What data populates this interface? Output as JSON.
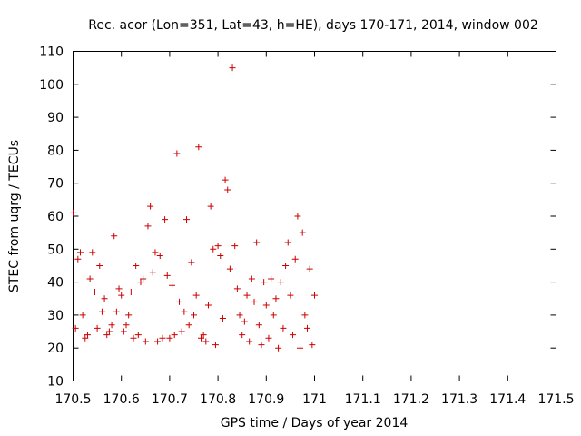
{
  "chart_data": {
    "type": "scatter",
    "title": "Rec. acor (Lon=351, Lat=43, h=HE), days 170-171, 2014, window 002",
    "xlabel": "GPS time / Days of year 2014",
    "ylabel": "STEC from uqrg / TECUs",
    "xlim": [
      170.5,
      171.5
    ],
    "ylim": [
      10,
      110
    ],
    "xticks": [
      170.5,
      170.6,
      170.7,
      170.8,
      170.9,
      171.0,
      171.1,
      171.2,
      171.3,
      171.4,
      171.5
    ],
    "xtick_labels": [
      "170.5",
      "170.6",
      "170.7",
      "170.8",
      "170.9",
      "171",
      "171.1",
      "171.2",
      "171.3",
      "171.4",
      "171.5"
    ],
    "yticks": [
      10,
      20,
      30,
      40,
      50,
      60,
      70,
      80,
      90,
      100,
      110
    ],
    "grid": false,
    "marker": "+",
    "color": "#cc0000",
    "series": [
      {
        "points": [
          [
            170.5,
            61
          ],
          [
            170.505,
            26
          ],
          [
            170.51,
            47
          ],
          [
            170.515,
            49
          ],
          [
            170.52,
            30
          ],
          [
            170.525,
            23
          ],
          [
            170.53,
            24
          ],
          [
            170.535,
            41
          ],
          [
            170.54,
            49
          ],
          [
            170.545,
            37
          ],
          [
            170.55,
            26
          ],
          [
            170.555,
            45
          ],
          [
            170.56,
            31
          ],
          [
            170.565,
            35
          ],
          [
            170.57,
            24
          ],
          [
            170.575,
            25
          ],
          [
            170.58,
            27
          ],
          [
            170.585,
            54
          ],
          [
            170.59,
            31
          ],
          [
            170.595,
            38
          ],
          [
            170.6,
            36
          ],
          [
            170.605,
            25
          ],
          [
            170.61,
            27
          ],
          [
            170.615,
            30
          ],
          [
            170.62,
            37
          ],
          [
            170.625,
            23
          ],
          [
            170.63,
            45
          ],
          [
            170.635,
            24
          ],
          [
            170.64,
            40
          ],
          [
            170.645,
            41
          ],
          [
            170.65,
            22
          ],
          [
            170.655,
            57
          ],
          [
            170.66,
            63
          ],
          [
            170.665,
            43
          ],
          [
            170.67,
            49
          ],
          [
            170.675,
            22
          ],
          [
            170.68,
            48
          ],
          [
            170.685,
            23
          ],
          [
            170.69,
            59
          ],
          [
            170.695,
            42
          ],
          [
            170.7,
            23
          ],
          [
            170.705,
            39
          ],
          [
            170.71,
            24
          ],
          [
            170.715,
            79
          ],
          [
            170.72,
            34
          ],
          [
            170.725,
            25
          ],
          [
            170.73,
            31
          ],
          [
            170.735,
            59
          ],
          [
            170.74,
            27
          ],
          [
            170.745,
            46
          ],
          [
            170.75,
            30
          ],
          [
            170.755,
            36
          ],
          [
            170.76,
            81
          ],
          [
            170.765,
            23
          ],
          [
            170.77,
            24
          ],
          [
            170.775,
            22
          ],
          [
            170.78,
            33
          ],
          [
            170.785,
            63
          ],
          [
            170.79,
            50
          ],
          [
            170.795,
            21
          ],
          [
            170.8,
            51
          ],
          [
            170.805,
            48
          ],
          [
            170.81,
            29
          ],
          [
            170.815,
            71
          ],
          [
            170.82,
            68
          ],
          [
            170.825,
            44
          ],
          [
            170.83,
            105
          ],
          [
            170.835,
            51
          ],
          [
            170.84,
            38
          ],
          [
            170.845,
            30
          ],
          [
            170.85,
            24
          ],
          [
            170.855,
            28
          ],
          [
            170.86,
            36
          ],
          [
            170.865,
            22
          ],
          [
            170.87,
            41
          ],
          [
            170.875,
            34
          ],
          [
            170.88,
            52
          ],
          [
            170.885,
            27
          ],
          [
            170.89,
            21
          ],
          [
            170.895,
            40
          ],
          [
            170.9,
            33
          ],
          [
            170.905,
            23
          ],
          [
            170.91,
            41
          ],
          [
            170.915,
            30
          ],
          [
            170.92,
            35
          ],
          [
            170.925,
            20
          ],
          [
            170.93,
            40
          ],
          [
            170.935,
            26
          ],
          [
            170.94,
            45
          ],
          [
            170.945,
            52
          ],
          [
            170.95,
            36
          ],
          [
            170.955,
            24
          ],
          [
            170.96,
            47
          ],
          [
            170.965,
            60
          ],
          [
            170.97,
            20
          ],
          [
            170.975,
            55
          ],
          [
            170.98,
            30
          ],
          [
            170.985,
            26
          ],
          [
            170.99,
            44
          ],
          [
            170.995,
            21
          ],
          [
            171.0,
            36
          ]
        ]
      }
    ]
  }
}
